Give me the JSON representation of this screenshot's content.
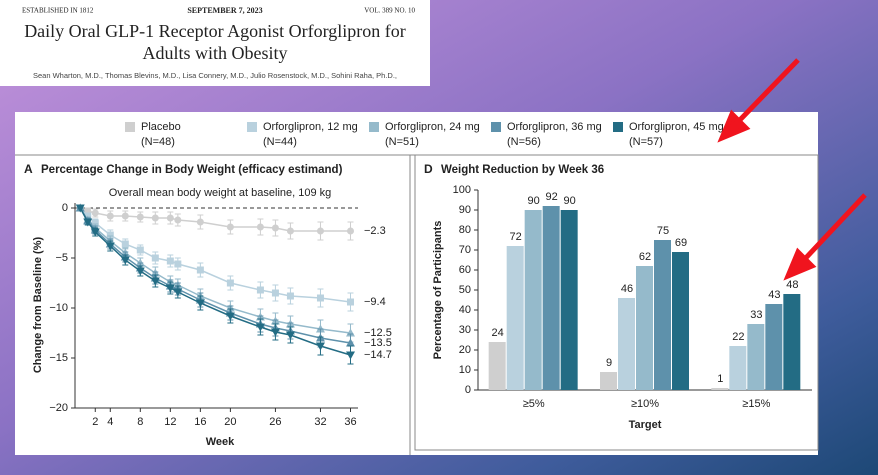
{
  "header": {
    "established": "ESTABLISHED IN 1812",
    "date": "SEPTEMBER 7, 2023",
    "volume": "VOL. 389  NO. 10",
    "title": "Daily Oral GLP-1 Receptor Agonist Orforglipron for Adults with Obesity",
    "authors": "Sean Wharton, M.D., Thomas Blevins, M.D., Lisa Connery, M.D., Julio Rosenstock, M.D., Sohini Raha, Ph.D.,"
  },
  "chart_data": [
    {
      "type": "line",
      "panel": "A",
      "title": "Percentage Change in Body Weight (efficacy estimand)",
      "subtitle": "Overall mean body weight at baseline, 109 kg",
      "x_label": "Week",
      "y_label": "Change from Baseline (%)",
      "x": [
        0,
        1,
        2,
        4,
        6,
        8,
        10,
        12,
        13,
        16,
        20,
        24,
        26,
        28,
        32,
        36
      ],
      "xlim": [
        -0.7,
        37
      ],
      "xticks": [
        2,
        4,
        8,
        12,
        16,
        20,
        26,
        32,
        36
      ],
      "ylim": [
        -20,
        0.5
      ],
      "yticks": [
        0,
        {
          "value": -5,
          "label": "−5"
        },
        {
          "value": -10,
          "label": "−10"
        },
        {
          "value": -15,
          "label": "−15"
        },
        {
          "value": -20,
          "label": "−20"
        }
      ],
      "series": [
        {
          "name": "Placebo",
          "n": "(N=48)",
          "color": "#cfcfcf",
          "marker": "circle",
          "end_label": "−2.3",
          "values": [
            0,
            -0.3,
            -0.5,
            -0.8,
            -0.8,
            -0.9,
            -1.0,
            -1.0,
            -1.2,
            -1.4,
            -1.9,
            -1.9,
            -2.0,
            -2.3,
            -2.3,
            -2.3
          ],
          "errors": [
            0,
            0.3,
            0.4,
            0.5,
            0.5,
            0.5,
            0.6,
            0.6,
            0.6,
            0.7,
            0.7,
            0.8,
            0.8,
            0.8,
            0.9,
            0.9
          ]
        },
        {
          "name": "Orforglipron, 12 mg",
          "n": "(N=44)",
          "color": "#b9d1de",
          "marker": "square",
          "end_label": "−9.4",
          "values": [
            0,
            -0.8,
            -1.5,
            -2.7,
            -3.6,
            -4.2,
            -5.0,
            -5.3,
            -5.6,
            -6.2,
            -7.5,
            -8.2,
            -8.5,
            -8.8,
            -9.0,
            -9.4
          ],
          "errors": [
            0,
            0.3,
            0.4,
            0.5,
            0.5,
            0.5,
            0.6,
            0.6,
            0.6,
            0.7,
            0.7,
            0.8,
            0.8,
            0.8,
            0.9,
            0.9
          ]
        },
        {
          "name": "Orforglipron, 24 mg",
          "n": "(N=51)",
          "color": "#95bacb",
          "marker": "triangle-up",
          "end_label": "−12.5",
          "values": [
            0,
            -1.2,
            -2.0,
            -3.3,
            -4.5,
            -5.5,
            -6.5,
            -7.4,
            -7.7,
            -8.8,
            -10.0,
            -10.9,
            -11.3,
            -11.6,
            -12.1,
            -12.5
          ],
          "errors": [
            0,
            0.3,
            0.4,
            0.5,
            0.5,
            0.5,
            0.6,
            0.6,
            0.6,
            0.7,
            0.7,
            0.8,
            0.8,
            0.8,
            0.9,
            0.9
          ]
        },
        {
          "name": "Orforglipron, 36 mg",
          "n": "(N=56)",
          "color": "#5e91ab",
          "marker": "triangle-up",
          "end_label": "−13.5",
          "values": [
            0,
            -1.3,
            -2.2,
            -3.6,
            -4.9,
            -6.0,
            -7.0,
            -7.8,
            -8.1,
            -9.2,
            -10.5,
            -11.6,
            -12.0,
            -12.3,
            -13.0,
            -13.5
          ],
          "errors": [
            0,
            0.3,
            0.4,
            0.5,
            0.5,
            0.5,
            0.6,
            0.6,
            0.6,
            0.7,
            0.7,
            0.8,
            0.8,
            0.8,
            0.9,
            0.9
          ]
        },
        {
          "name": "Orforglipron, 45 mg",
          "n": "(N=57)",
          "color": "#236c84",
          "marker": "triangle-down",
          "end_label": "−14.7",
          "values": [
            0,
            -1.4,
            -2.4,
            -3.8,
            -5.2,
            -6.3,
            -7.3,
            -8.0,
            -8.4,
            -9.5,
            -10.8,
            -11.9,
            -12.4,
            -12.7,
            -13.8,
            -14.7
          ],
          "errors": [
            0,
            0.3,
            0.4,
            0.5,
            0.5,
            0.5,
            0.6,
            0.6,
            0.6,
            0.7,
            0.7,
            0.8,
            0.8,
            0.8,
            0.9,
            0.9
          ]
        }
      ]
    },
    {
      "type": "bar",
      "panel": "D",
      "title": "Weight Reduction by Week 36",
      "x_label": "Target",
      "y_label": "Percentage of Participants",
      "categories": [
        "≥5%",
        "≥10%",
        "≥15%"
      ],
      "ylim": [
        0,
        100
      ],
      "yticks": [
        0,
        10,
        20,
        30,
        40,
        50,
        60,
        70,
        80,
        90,
        100
      ],
      "series": [
        {
          "color": "#cfcfcf",
          "values": [
            24,
            9,
            1
          ]
        },
        {
          "color": "#b9d1de",
          "values": [
            72,
            46,
            22
          ]
        },
        {
          "color": "#95bacb",
          "values": [
            90,
            62,
            33
          ]
        },
        {
          "color": "#5e91ab",
          "values": [
            92,
            75,
            43
          ]
        },
        {
          "color": "#236c84",
          "values": [
            90,
            69,
            48
          ]
        }
      ]
    }
  ]
}
